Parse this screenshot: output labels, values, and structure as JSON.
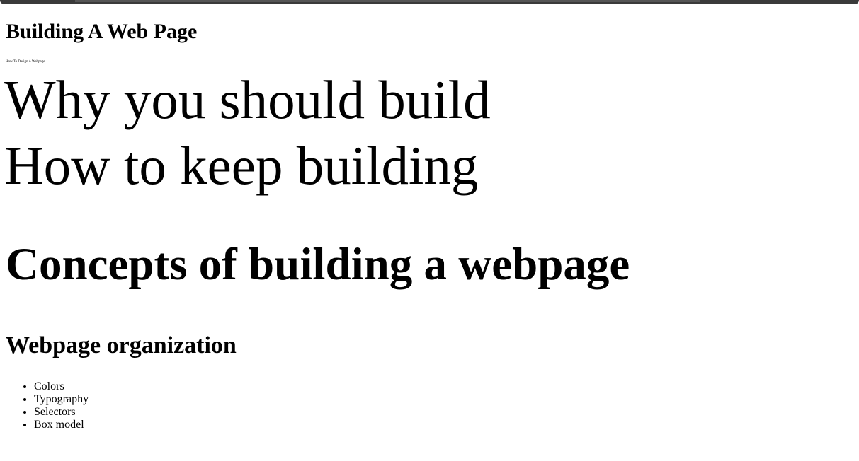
{
  "header": {
    "title": "Building A Web Page",
    "tagline": "How To Design A Webpage"
  },
  "hero": {
    "line1": "Why you should build",
    "line2": "How to keep building"
  },
  "concepts": {
    "heading": "Concepts of building a webpage"
  },
  "organization": {
    "heading": "Webpage organization",
    "items": [
      "Colors",
      "Typography",
      "Selectors",
      "Box model"
    ]
  }
}
